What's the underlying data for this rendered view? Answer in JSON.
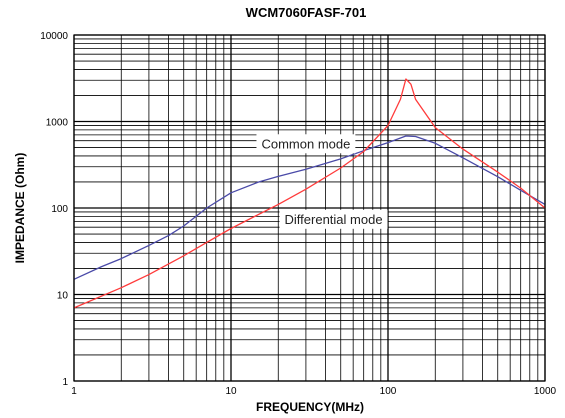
{
  "chart_data": {
    "type": "line",
    "title": "WCM7060FASF-701",
    "xlabel": "FREQUENCY(MHz)",
    "ylabel": "IMPEDANCE (Ohm)",
    "x_scale": "log",
    "y_scale": "log",
    "xlim": [
      1,
      1000
    ],
    "ylim": [
      1,
      10000
    ],
    "grid": true,
    "x_ticks": [
      "1",
      "10",
      "100",
      "1000"
    ],
    "y_ticks": [
      "1",
      "10",
      "100",
      "1000",
      "10000"
    ],
    "series": [
      {
        "name": "Common mode",
        "color": "#4a4aa8",
        "x": [
          1,
          1.5,
          2,
          3,
          4,
          5,
          7,
          10,
          15,
          20,
          30,
          50,
          70,
          100,
          130,
          150,
          200,
          300,
          500,
          700,
          1000
        ],
        "y": [
          15,
          21,
          26,
          37,
          48,
          62,
          100,
          150,
          200,
          232,
          280,
          370,
          460,
          570,
          680,
          670,
          560,
          380,
          230,
          160,
          110
        ]
      },
      {
        "name": "Differential mode",
        "color": "#ff3b3b",
        "x": [
          1,
          2,
          3,
          5,
          7,
          10,
          20,
          30,
          50,
          70,
          100,
          120,
          130,
          140,
          150,
          200,
          300,
          500,
          700,
          1000
        ],
        "y": [
          7,
          12,
          17,
          28,
          40,
          58,
          110,
          165,
          290,
          450,
          900,
          1800,
          3100,
          2700,
          1800,
          850,
          480,
          260,
          170,
          100
        ]
      }
    ],
    "annotations": [
      {
        "text": "Common mode",
        "x": 30,
        "y": 560
      },
      {
        "text": "Differential mode",
        "x": 45,
        "y": 75
      }
    ]
  }
}
